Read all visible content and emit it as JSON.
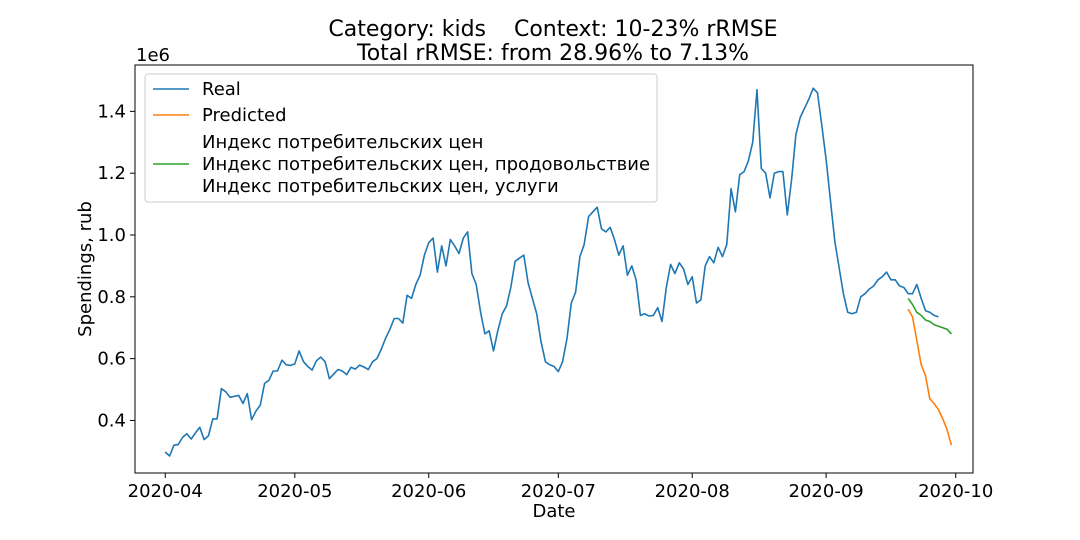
{
  "chart_data": {
    "type": "line",
    "title_line1": "Category: kids    Context: 10-23% rRMSE",
    "title_line2": "Total rRMSE: from 28.96% to 7.13%",
    "xlabel": "Date",
    "ylabel": "Spendings, rub",
    "y_offset_label": "1e6",
    "ylim": [
      0.23,
      1.55
    ],
    "yticks": [
      0.4,
      0.6,
      0.8,
      1.0,
      1.2,
      1.4
    ],
    "ytick_labels": [
      "0.4",
      "0.6",
      "0.8",
      "1.0",
      "1.2",
      "1.4"
    ],
    "xlim": [
      "2020-03-25",
      "2020-10-05"
    ],
    "xticks": [
      "2020-04-01",
      "2020-05-01",
      "2020-06-01",
      "2020-07-01",
      "2020-08-01",
      "2020-09-01",
      "2020-10-01"
    ],
    "xtick_labels": [
      "2020-04",
      "2020-05",
      "2020-06",
      "2020-07",
      "2020-08",
      "2020-09",
      "2020-10"
    ],
    "grid": false,
    "legend_placement": "upper-left",
    "series": [
      {
        "name": "Real",
        "color": "#1f77b4",
        "points": [
          [
            "2020-04-01",
            0.298
          ],
          [
            "2020-04-02",
            0.285
          ],
          [
            "2020-04-03",
            0.32
          ],
          [
            "2020-04-04",
            0.322
          ],
          [
            "2020-04-05",
            0.345
          ],
          [
            "2020-04-06",
            0.357
          ],
          [
            "2020-04-07",
            0.34
          ],
          [
            "2020-04-08",
            0.36
          ],
          [
            "2020-04-09",
            0.378
          ],
          [
            "2020-04-10",
            0.338
          ],
          [
            "2020-04-11",
            0.35
          ],
          [
            "2020-04-12",
            0.405
          ],
          [
            "2020-04-13",
            0.405
          ],
          [
            "2020-04-14",
            0.503
          ],
          [
            "2020-04-15",
            0.493
          ],
          [
            "2020-04-16",
            0.475
          ],
          [
            "2020-04-17",
            0.478
          ],
          [
            "2020-04-18",
            0.481
          ],
          [
            "2020-04-19",
            0.455
          ],
          [
            "2020-04-20",
            0.487
          ],
          [
            "2020-04-21",
            0.402
          ],
          [
            "2020-04-22",
            0.43
          ],
          [
            "2020-04-23",
            0.45
          ],
          [
            "2020-04-24",
            0.52
          ],
          [
            "2020-04-25",
            0.53
          ],
          [
            "2020-04-26",
            0.56
          ],
          [
            "2020-04-27",
            0.56
          ],
          [
            "2020-04-28",
            0.595
          ],
          [
            "2020-04-29",
            0.58
          ],
          [
            "2020-04-30",
            0.578
          ],
          [
            "2020-05-01",
            0.583
          ],
          [
            "2020-05-02",
            0.625
          ],
          [
            "2020-05-03",
            0.59
          ],
          [
            "2020-05-04",
            0.575
          ],
          [
            "2020-05-05",
            0.563
          ],
          [
            "2020-05-06",
            0.593
          ],
          [
            "2020-05-07",
            0.605
          ],
          [
            "2020-05-08",
            0.59
          ],
          [
            "2020-05-09",
            0.535
          ],
          [
            "2020-05-10",
            0.55
          ],
          [
            "2020-05-11",
            0.565
          ],
          [
            "2020-05-12",
            0.56
          ],
          [
            "2020-05-13",
            0.548
          ],
          [
            "2020-05-14",
            0.572
          ],
          [
            "2020-05-15",
            0.566
          ],
          [
            "2020-05-16",
            0.579
          ],
          [
            "2020-05-17",
            0.573
          ],
          [
            "2020-05-18",
            0.565
          ],
          [
            "2020-05-19",
            0.59
          ],
          [
            "2020-05-20",
            0.6
          ],
          [
            "2020-05-21",
            0.63
          ],
          [
            "2020-05-22",
            0.665
          ],
          [
            "2020-05-23",
            0.695
          ],
          [
            "2020-05-24",
            0.73
          ],
          [
            "2020-05-25",
            0.73
          ],
          [
            "2020-05-26",
            0.715
          ],
          [
            "2020-05-27",
            0.805
          ],
          [
            "2020-05-28",
            0.795
          ],
          [
            "2020-05-29",
            0.84
          ],
          [
            "2020-05-30",
            0.87
          ],
          [
            "2020-05-31",
            0.935
          ],
          [
            "2020-06-01",
            0.975
          ],
          [
            "2020-06-02",
            0.99
          ],
          [
            "2020-06-03",
            0.88
          ],
          [
            "2020-06-04",
            0.965
          ],
          [
            "2020-06-05",
            0.9
          ],
          [
            "2020-06-06",
            0.985
          ],
          [
            "2020-06-07",
            0.965
          ],
          [
            "2020-06-08",
            0.94
          ],
          [
            "2020-06-09",
            0.99
          ],
          [
            "2020-06-10",
            1.01
          ],
          [
            "2020-06-11",
            0.875
          ],
          [
            "2020-06-12",
            0.84
          ],
          [
            "2020-06-13",
            0.75
          ],
          [
            "2020-06-14",
            0.68
          ],
          [
            "2020-06-15",
            0.69
          ],
          [
            "2020-06-16",
            0.625
          ],
          [
            "2020-06-17",
            0.69
          ],
          [
            "2020-06-18",
            0.745
          ],
          [
            "2020-06-19",
            0.77
          ],
          [
            "2020-06-20",
            0.83
          ],
          [
            "2020-06-21",
            0.915
          ],
          [
            "2020-06-22",
            0.925
          ],
          [
            "2020-06-23",
            0.935
          ],
          [
            "2020-06-24",
            0.845
          ],
          [
            "2020-06-25",
            0.795
          ],
          [
            "2020-06-26",
            0.745
          ],
          [
            "2020-06-27",
            0.655
          ],
          [
            "2020-06-28",
            0.59
          ],
          [
            "2020-06-29",
            0.58
          ],
          [
            "2020-06-30",
            0.575
          ],
          [
            "2020-07-01",
            0.558
          ],
          [
            "2020-07-02",
            0.59
          ],
          [
            "2020-07-03",
            0.665
          ],
          [
            "2020-07-04",
            0.78
          ],
          [
            "2020-07-05",
            0.815
          ],
          [
            "2020-07-06",
            0.93
          ],
          [
            "2020-07-07",
            0.97
          ],
          [
            "2020-07-08",
            1.06
          ],
          [
            "2020-07-09",
            1.075
          ],
          [
            "2020-07-10",
            1.09
          ],
          [
            "2020-07-11",
            1.02
          ],
          [
            "2020-07-12",
            1.01
          ],
          [
            "2020-07-13",
            1.025
          ],
          [
            "2020-07-14",
            0.985
          ],
          [
            "2020-07-15",
            0.935
          ],
          [
            "2020-07-16",
            0.965
          ],
          [
            "2020-07-17",
            0.87
          ],
          [
            "2020-07-18",
            0.9
          ],
          [
            "2020-07-19",
            0.855
          ],
          [
            "2020-07-20",
            0.74
          ],
          [
            "2020-07-21",
            0.745
          ],
          [
            "2020-07-22",
            0.738
          ],
          [
            "2020-07-23",
            0.74
          ],
          [
            "2020-07-24",
            0.765
          ],
          [
            "2020-07-25",
            0.72
          ],
          [
            "2020-07-26",
            0.83
          ],
          [
            "2020-07-27",
            0.905
          ],
          [
            "2020-07-28",
            0.875
          ],
          [
            "2020-07-29",
            0.91
          ],
          [
            "2020-07-30",
            0.89
          ],
          [
            "2020-07-31",
            0.84
          ],
          [
            "2020-08-01",
            0.865
          ],
          [
            "2020-08-02",
            0.78
          ],
          [
            "2020-08-03",
            0.79
          ],
          [
            "2020-08-04",
            0.9
          ],
          [
            "2020-08-05",
            0.93
          ],
          [
            "2020-08-06",
            0.91
          ],
          [
            "2020-08-07",
            0.96
          ],
          [
            "2020-08-08",
            0.93
          ],
          [
            "2020-08-09",
            0.97
          ],
          [
            "2020-08-10",
            1.15
          ],
          [
            "2020-08-11",
            1.075
          ],
          [
            "2020-08-12",
            1.195
          ],
          [
            "2020-08-13",
            1.205
          ],
          [
            "2020-08-14",
            1.24
          ],
          [
            "2020-08-15",
            1.3
          ],
          [
            "2020-08-16",
            1.47
          ],
          [
            "2020-08-17",
            1.215
          ],
          [
            "2020-08-18",
            1.2
          ],
          [
            "2020-08-19",
            1.12
          ],
          [
            "2020-08-20",
            1.2
          ],
          [
            "2020-08-21",
            1.205
          ],
          [
            "2020-08-22",
            1.205
          ],
          [
            "2020-08-23",
            1.065
          ],
          [
            "2020-08-24",
            1.18
          ],
          [
            "2020-08-25",
            1.325
          ],
          [
            "2020-08-26",
            1.38
          ],
          [
            "2020-08-27",
            1.41
          ],
          [
            "2020-08-28",
            1.44
          ],
          [
            "2020-08-29",
            1.475
          ],
          [
            "2020-08-30",
            1.46
          ],
          [
            "2020-08-31",
            1.355
          ],
          [
            "2020-09-01",
            1.245
          ],
          [
            "2020-09-02",
            1.11
          ],
          [
            "2020-09-03",
            0.98
          ],
          [
            "2020-09-04",
            0.895
          ],
          [
            "2020-09-05",
            0.81
          ],
          [
            "2020-09-06",
            0.75
          ],
          [
            "2020-09-07",
            0.745
          ],
          [
            "2020-09-08",
            0.75
          ],
          [
            "2020-09-09",
            0.8
          ],
          [
            "2020-09-10",
            0.81
          ],
          [
            "2020-09-11",
            0.825
          ],
          [
            "2020-09-12",
            0.835
          ],
          [
            "2020-09-13",
            0.855
          ],
          [
            "2020-09-14",
            0.865
          ],
          [
            "2020-09-15",
            0.88
          ],
          [
            "2020-09-16",
            0.855
          ],
          [
            "2020-09-17",
            0.855
          ],
          [
            "2020-09-18",
            0.835
          ],
          [
            "2020-09-19",
            0.83
          ],
          [
            "2020-09-20",
            0.81
          ],
          [
            "2020-09-21",
            0.81
          ],
          [
            "2020-09-22",
            0.84
          ],
          [
            "2020-09-23",
            0.795
          ],
          [
            "2020-09-24",
            0.755
          ],
          [
            "2020-09-25",
            0.75
          ],
          [
            "2020-09-26",
            0.74
          ],
          [
            "2020-09-27",
            0.735
          ]
        ]
      },
      {
        "name": "Predicted",
        "color": "#ff7f0e",
        "points": [
          [
            "2020-09-20",
            0.76
          ],
          [
            "2020-09-21",
            0.735
          ],
          [
            "2020-09-22",
            0.66
          ],
          [
            "2020-09-23",
            0.58
          ],
          [
            "2020-09-24",
            0.545
          ],
          [
            "2020-09-25",
            0.47
          ],
          [
            "2020-09-26",
            0.455
          ],
          [
            "2020-09-27",
            0.435
          ],
          [
            "2020-09-28",
            0.405
          ],
          [
            "2020-09-29",
            0.37
          ],
          [
            "2020-09-30",
            0.32
          ]
        ]
      },
      {
        "name": "Индекс потребительских цен\nИндекс потребительских цен, продовольствие\nИндекс потребительских цен, услуги",
        "color": "#2ca02c",
        "points": [
          [
            "2020-09-20",
            0.795
          ],
          [
            "2020-09-21",
            0.775
          ],
          [
            "2020-09-22",
            0.75
          ],
          [
            "2020-09-23",
            0.74
          ],
          [
            "2020-09-24",
            0.725
          ],
          [
            "2020-09-25",
            0.72
          ],
          [
            "2020-09-26",
            0.71
          ],
          [
            "2020-09-27",
            0.705
          ],
          [
            "2020-09-28",
            0.7
          ],
          [
            "2020-09-29",
            0.695
          ],
          [
            "2020-09-30",
            0.68
          ]
        ]
      }
    ]
  }
}
